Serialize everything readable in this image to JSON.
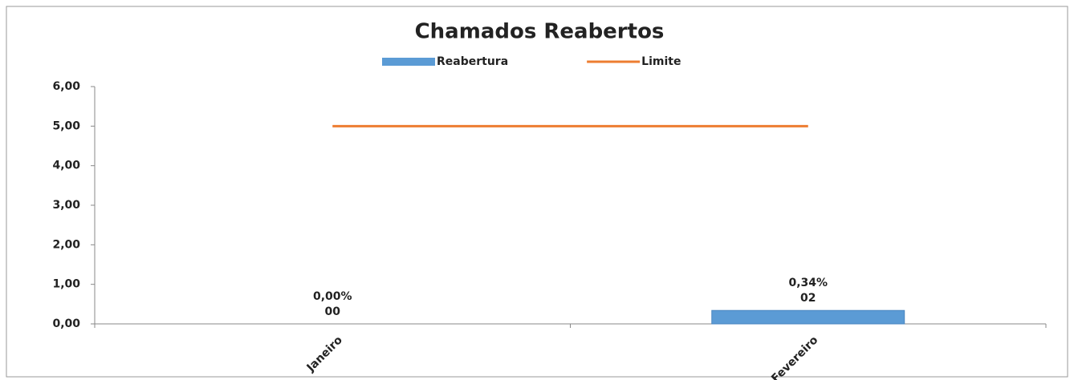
{
  "chart_data": {
    "type": "bar-line",
    "title": "Chamados Reabertos",
    "categories": [
      "Janeiro",
      "Fevereiro"
    ],
    "series": [
      {
        "name": "Reabertura",
        "type": "bar",
        "color": "#5b9bd5",
        "values": [
          0,
          0.34
        ],
        "value_labels": [
          "0,00%",
          "0,34%"
        ],
        "count_labels": [
          "00",
          "02"
        ]
      },
      {
        "name": "Limite",
        "type": "line",
        "color": "#ed7d31",
        "values": [
          5,
          5
        ]
      }
    ],
    "ylim": [
      0,
      6
    ],
    "yticks": [
      {
        "value": 0,
        "label": "0,00"
      },
      {
        "value": 1,
        "label": "1,00"
      },
      {
        "value": 2,
        "label": "2,00"
      },
      {
        "value": 3,
        "label": "3,00"
      },
      {
        "value": 4,
        "label": "4,00"
      },
      {
        "value": 5,
        "label": "5,00"
      },
      {
        "value": 6,
        "label": "6,00"
      }
    ],
    "legend": "top"
  }
}
